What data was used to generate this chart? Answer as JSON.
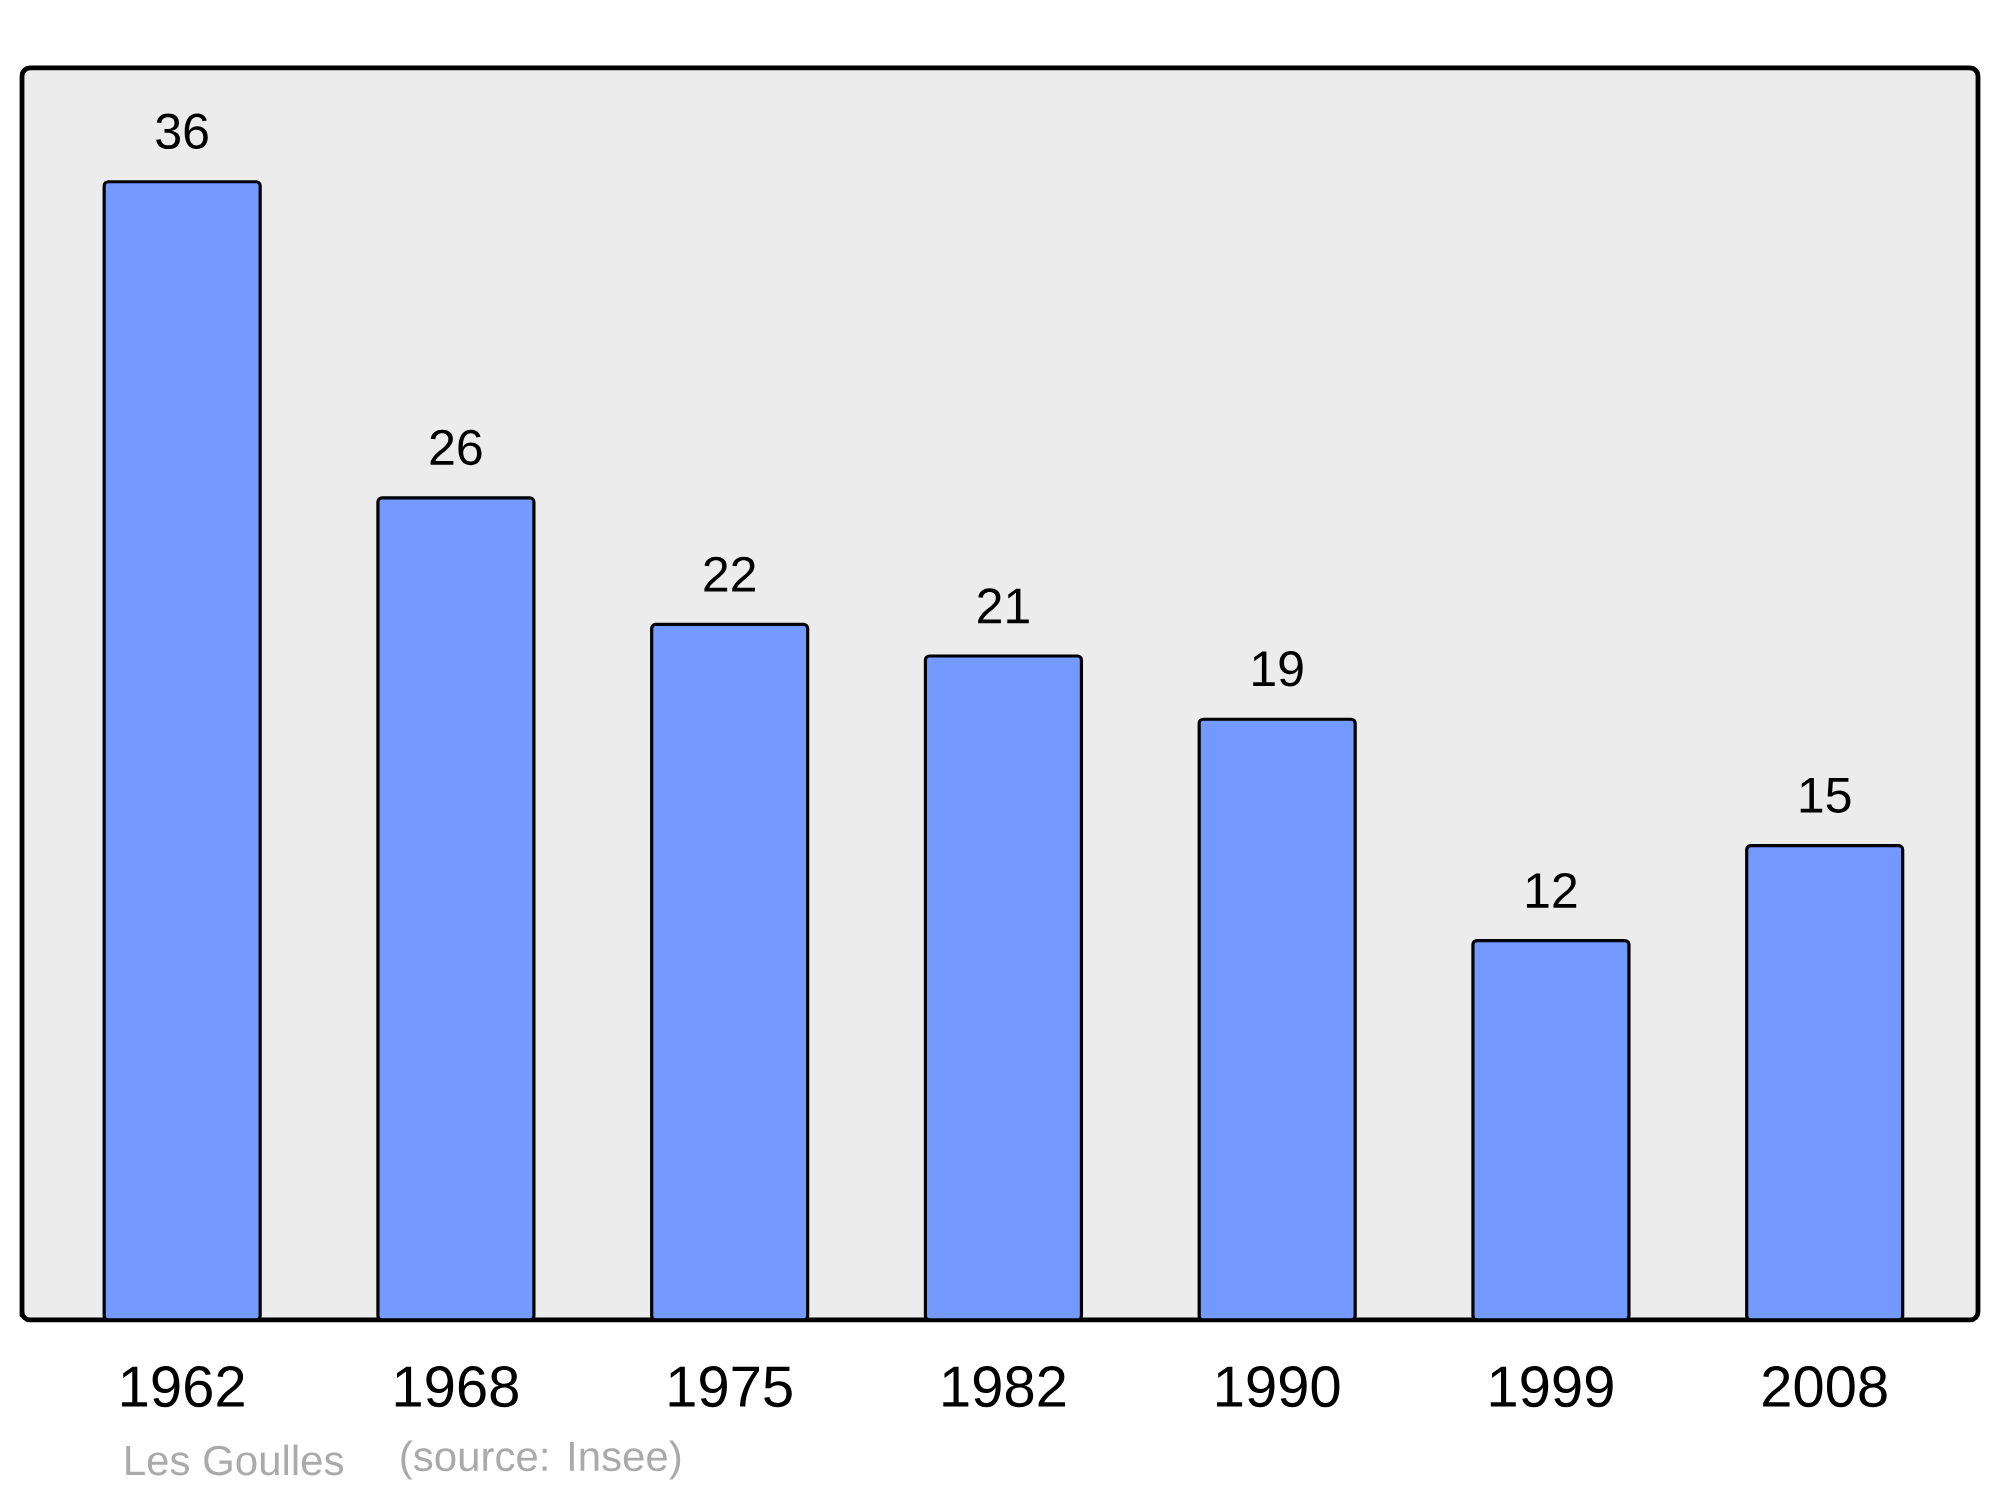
{
  "chart_data": {
    "type": "bar",
    "categories": [
      "1962",
      "1968",
      "1975",
      "1982",
      "1990",
      "1999",
      "2008"
    ],
    "values": [
      36,
      26,
      22,
      21,
      19,
      12,
      15
    ],
    "color": "#7499ff",
    "data_labels": true,
    "grid": false,
    "annotations": [
      "Les Goulles",
      "(source: Insee)"
    ]
  }
}
